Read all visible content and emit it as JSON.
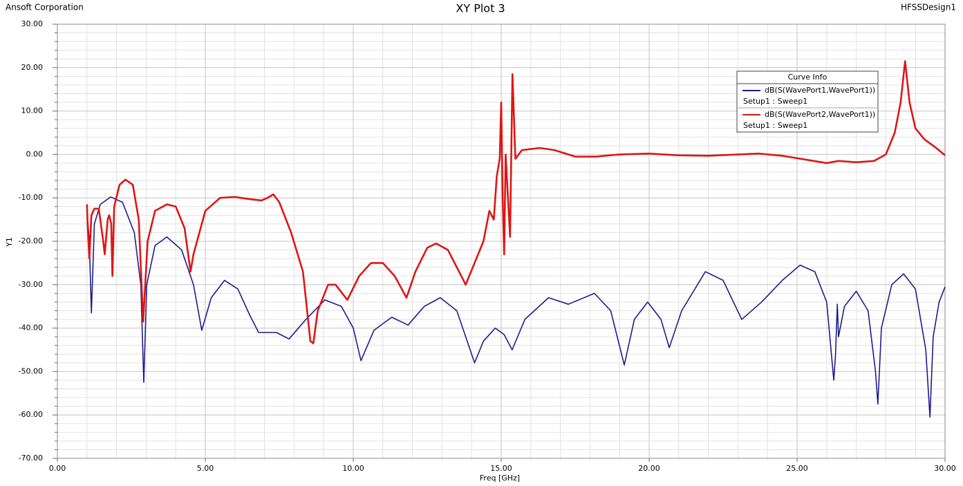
{
  "chart_data": {
    "type": "line",
    "title": "XY Plot 3",
    "company": "Ansoft Corporation",
    "design": "HFSSDesign1",
    "x_label": "Freq [GHz]",
    "y_label": "Y1",
    "legend_title": "Curve Info",
    "xlim": [
      0,
      30
    ],
    "ylim": [
      -70,
      30
    ],
    "xticks": [
      {
        "value": 0,
        "label": "0.00"
      },
      {
        "value": 5,
        "label": "5.00"
      },
      {
        "value": 10,
        "label": "10.00"
      },
      {
        "value": 15,
        "label": "15.00"
      },
      {
        "value": 20,
        "label": "20.00"
      },
      {
        "value": 25,
        "label": "25.00"
      },
      {
        "value": 30,
        "label": "30.00"
      }
    ],
    "yticks": [
      {
        "value": 30,
        "label": "30.00"
      },
      {
        "value": 20,
        "label": "20.00"
      },
      {
        "value": 10,
        "label": "10.00"
      },
      {
        "value": 0,
        "label": "0.00"
      },
      {
        "value": -10,
        "label": "-10.00"
      },
      {
        "value": -20,
        "label": "-20.00"
      },
      {
        "value": -30,
        "label": "-30.00"
      },
      {
        "value": -40,
        "label": "-40.00"
      },
      {
        "value": -50,
        "label": "-50.00"
      },
      {
        "value": -60,
        "label": "-60.00"
      },
      {
        "value": -70,
        "label": "-70.00"
      }
    ],
    "grid": true,
    "series": [
      {
        "name": "dB(S(WavePort1,WavePort1))",
        "sweep": "Setup1 : Sweep1",
        "color": "#1c1c8c",
        "x": [
          1.0,
          1.08,
          1.15,
          1.25,
          1.45,
          1.8,
          2.2,
          2.6,
          2.82,
          2.92,
          3.02,
          3.3,
          3.7,
          4.2,
          4.6,
          4.88,
          5.2,
          5.65,
          6.1,
          6.5,
          6.8,
          7.4,
          7.83,
          8.4,
          9.04,
          9.6,
          10.0,
          10.26,
          10.7,
          11.3,
          11.85,
          12.4,
          12.94,
          13.5,
          13.9,
          14.1,
          14.4,
          14.8,
          15.1,
          15.37,
          15.8,
          16.6,
          17.27,
          18.15,
          18.7,
          19.16,
          19.5,
          19.95,
          20.4,
          20.68,
          21.1,
          21.9,
          22.5,
          23.13,
          23.8,
          24.5,
          25.1,
          25.6,
          26.0,
          26.24,
          26.3,
          26.36,
          26.4,
          26.6,
          27.0,
          27.4,
          27.65,
          27.73,
          27.85,
          28.2,
          28.6,
          29.0,
          29.35,
          29.49,
          29.6,
          29.8,
          30.0
        ],
        "values": [
          -13,
          -20,
          -36.5,
          -16,
          -11.5,
          -9.8,
          -11,
          -18,
          -30,
          -52.5,
          -30,
          -21,
          -19,
          -22,
          -30,
          -40.5,
          -33,
          -29,
          -31,
          -37,
          -41,
          -41,
          -42.5,
          -38,
          -33.5,
          -35,
          -40,
          -47.5,
          -40.5,
          -37.5,
          -39.3,
          -35,
          -33,
          -36,
          -44,
          -48,
          -43,
          -40,
          -41.5,
          -45,
          -38,
          -33,
          -34.5,
          -32,
          -36,
          -48.5,
          -38,
          -34,
          -38,
          -44.5,
          -36,
          -27,
          -29,
          -38,
          -34,
          -29,
          -25.5,
          -27,
          -34,
          -52,
          -46,
          -34.5,
          -42,
          -35,
          -31.5,
          -36,
          -50,
          -57.5,
          -40,
          -30,
          -27.5,
          -31,
          -45,
          -60.5,
          -42,
          -34,
          -30.5
        ]
      },
      {
        "name": "dB(S(WavePort2,WavePort1))",
        "sweep": "Setup1 : Sweep1",
        "color": "#e01414",
        "x": [
          1.0,
          1.02,
          1.08,
          1.15,
          1.25,
          1.4,
          1.55,
          1.6,
          1.7,
          1.75,
          1.82,
          1.86,
          1.92,
          2.1,
          2.3,
          2.55,
          2.75,
          2.9,
          3.05,
          3.3,
          3.7,
          4.0,
          4.3,
          4.5,
          4.6,
          5.0,
          5.5,
          6.0,
          6.5,
          6.9,
          7.1,
          7.3,
          7.5,
          7.9,
          8.3,
          8.55,
          8.65,
          8.8,
          9.15,
          9.4,
          9.8,
          10.2,
          10.6,
          11.0,
          11.4,
          11.8,
          12.1,
          12.5,
          12.8,
          13.2,
          13.5,
          13.8,
          14.1,
          14.4,
          14.6,
          14.75,
          14.85,
          14.95,
          15.0,
          15.05,
          15.1,
          15.15,
          15.3,
          15.38,
          15.48,
          15.7,
          16.3,
          16.8,
          17.5,
          18.2,
          19.0,
          20.0,
          21.0,
          22.0,
          23.0,
          23.7,
          24.5,
          25.3,
          26.0,
          26.4,
          27.0,
          27.6,
          28.0,
          28.3,
          28.5,
          28.65,
          28.8,
          29.0,
          29.3,
          29.7,
          30.0
        ],
        "values": [
          -11.5,
          -16,
          -24,
          -14,
          -12.5,
          -12.5,
          -20,
          -23,
          -15,
          -14,
          -16,
          -28,
          -12,
          -7,
          -5.8,
          -7,
          -15,
          -38.5,
          -20,
          -13,
          -11.5,
          -12,
          -17,
          -27,
          -23,
          -13,
          -10,
          -9.8,
          -10.3,
          -10.6,
          -10,
          -9.2,
          -11,
          -18,
          -27,
          -43,
          -43.5,
          -36,
          -30,
          -30,
          -33.5,
          -28,
          -25,
          -25,
          -28,
          -33,
          -27,
          -21.5,
          -20.5,
          -22,
          -26,
          -30,
          -25,
          -20,
          -13,
          -15,
          -5,
          -1,
          12,
          -10,
          -23,
          0,
          -19,
          18.5,
          -1,
          1,
          1.5,
          1,
          -0.5,
          -0.5,
          0,
          0.2,
          -0.2,
          -0.3,
          0,
          0.2,
          -0.3,
          -1.2,
          -2,
          -1.5,
          -1.8,
          -1.5,
          0,
          5,
          12,
          21.5,
          12,
          6,
          3.5,
          1.5,
          -0.2
        ]
      }
    ]
  }
}
